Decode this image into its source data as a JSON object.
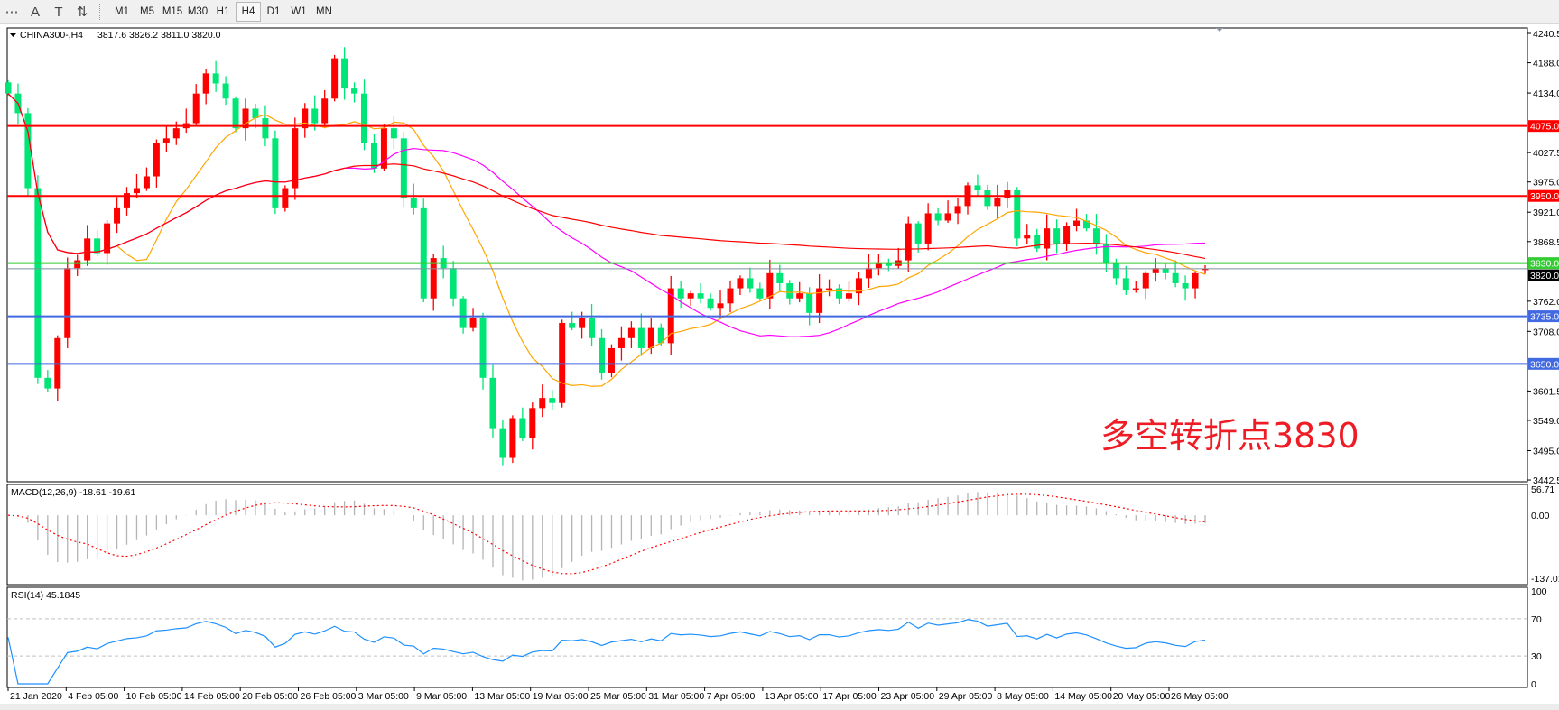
{
  "toolbar": {
    "tools": [
      {
        "icon": "grid-f-icon",
        "glyph": "⋯"
      },
      {
        "icon": "text-a-icon",
        "glyph": "A"
      },
      {
        "icon": "text-label-icon",
        "glyph": "T"
      },
      {
        "icon": "arrows-icon",
        "glyph": "⇅"
      }
    ],
    "timeframes": [
      "M1",
      "M5",
      "M15",
      "M30",
      "H1",
      "H4",
      "D1",
      "W1",
      "MN"
    ],
    "selected_timeframe": "H4"
  },
  "header": {
    "symbol": "CHINA300-,H4",
    "ohlc": "3817.6 3826.2 3811.0 3820.0"
  },
  "annotation": "多空转折点3830",
  "colors": {
    "up": "#ff0000",
    "down": "#00e676",
    "ma_fast": "#ffa500",
    "ma_mid": "#ff00ff",
    "ma_slow": "#ff0000",
    "resistance": "#ff0000",
    "pivot": "#33cc33",
    "support": "#4169e1",
    "current": "#7f8fa0",
    "macd_hist": "#b4b4b4",
    "macd_signal": "#ff0000",
    "rsi": "#1e90ff"
  },
  "chart_data": {
    "type": "candlestick",
    "symbol": "CHINA300-",
    "timeframe": "H4",
    "ylim": [
      3442.5,
      4240.5
    ],
    "price_ticks": [
      "4240.5",
      "4188.0",
      "4134.0",
      "4027.5",
      "3975.0",
      "3921.0",
      "3868.5",
      "3762.0",
      "3708.0",
      "3601.5",
      "3549.0",
      "3495.0",
      "3442.5"
    ],
    "x_ticks": [
      "21 Jan 2020",
      "4 Feb 05:00",
      "10 Feb 05:00",
      "14 Feb 05:00",
      "20 Feb 05:00",
      "26 Feb 05:00",
      "3 Mar 05:00",
      "9 Mar 05:00",
      "13 Mar 05:00",
      "19 Mar 05:00",
      "25 Mar 05:00",
      "31 Mar 05:00",
      "7 Apr 05:00",
      "13 Apr 05:00",
      "17 Apr 05:00",
      "23 Apr 05:00",
      "29 Apr 05:00",
      "8 May 05:00",
      "14 May 05:00",
      "20 May 05:00",
      "26 May 05:00"
    ],
    "last_bar": {
      "open": 3817.6,
      "high": 3826.2,
      "low": 3811.0,
      "close": 3820.0
    },
    "closes": [
      4133,
      4098,
      3964,
      3625,
      3606,
      3696,
      3821,
      3835,
      3874,
      3848,
      3901,
      3928,
      3955,
      3964,
      3985,
      4044,
      4053,
      4071,
      4080,
      4133,
      4169,
      4151,
      4124,
      4071,
      4106,
      4089,
      4053,
      3928,
      3964,
      4071,
      4106,
      4080,
      4124,
      4196,
      4142,
      4133,
      4044,
      3999,
      4071,
      4053,
      3946,
      3928,
      3767,
      3839,
      3821,
      3767,
      3714,
      3732,
      3625,
      3535,
      3482,
      3553,
      3517,
      3571,
      3589,
      3580,
      3723,
      3714,
      3732,
      3696,
      3633,
      3678,
      3696,
      3714,
      3678,
      3714,
      3687,
      3785,
      3767,
      3776,
      3767,
      3750,
      3758,
      3785,
      3803,
      3785,
      3767,
      3812,
      3794,
      3767,
      3776,
      3741,
      3785,
      3785,
      3767,
      3776,
      3803,
      3821,
      3830,
      3825,
      3835,
      3901,
      3865,
      3919,
      3906,
      3919,
      3932,
      3969,
      3960,
      3932,
      3946,
      3960,
      3874,
      3880,
      3856,
      3892,
      3865,
      3896,
      3906,
      3892,
      3865,
      3830,
      3803,
      3781,
      3785,
      3812,
      3821,
      3812,
      3794,
      3785,
      3812,
      3820
    ],
    "horizontal_lines": [
      {
        "value": 4075.0,
        "label": "4075.0",
        "kind": "resistance"
      },
      {
        "value": 3950.0,
        "label": "3950.0",
        "kind": "resistance"
      },
      {
        "value": 3830.0,
        "label": "3830.0",
        "kind": "pivot"
      },
      {
        "value": 3820.0,
        "label": "3820.0",
        "kind": "current"
      },
      {
        "value": 3735.0,
        "label": "3735.0",
        "kind": "support"
      },
      {
        "value": 3650.0,
        "label": "3650.0",
        "kind": "support"
      }
    ],
    "macd": {
      "label": "MACD(12,26,9) -18.61 -19.61",
      "ylim": [
        -137.01,
        56.71
      ],
      "ticks": [
        "56.71",
        "0.00",
        "-137.01"
      ]
    },
    "rsi": {
      "label": "RSI(14) 45.1845",
      "ylim": [
        0,
        100
      ],
      "ticks": [
        "100",
        "70",
        "30",
        "0"
      ],
      "levels": [
        70,
        30
      ]
    }
  }
}
